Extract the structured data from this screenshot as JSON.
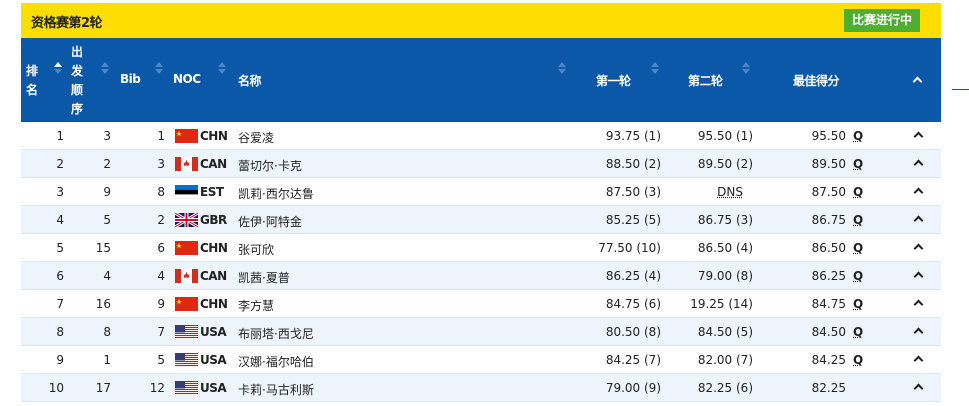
{
  "title": "资格赛第2轮",
  "status": "比赛进行中",
  "columns": {
    "rank": [
      "排",
      "名"
    ],
    "start_order": [
      "出",
      "发",
      "顺",
      "序"
    ],
    "bib": "Bib",
    "noc": "NOC",
    "name": "名称",
    "run1": "第一轮",
    "run2": "第二轮",
    "best": "最佳得分"
  },
  "sort_active": "rank-asc",
  "rows": [
    {
      "rank": "1",
      "order": "3",
      "bib": "1",
      "noc": "CHN",
      "name": "谷爱凌",
      "run1": "93.75 (1)",
      "run2": "95.50 (1)",
      "best": "95.50",
      "q": "Q"
    },
    {
      "rank": "2",
      "order": "2",
      "bib": "3",
      "noc": "CAN",
      "name": "蕾切尔·卡克",
      "run1": "88.50 (2)",
      "run2": "89.50 (2)",
      "best": "89.50",
      "q": "Q"
    },
    {
      "rank": "3",
      "order": "9",
      "bib": "8",
      "noc": "EST",
      "name": "凯莉·西尔达鲁",
      "run1": "87.50 (3)",
      "run2": "DNS",
      "best": "87.50",
      "q": "Q"
    },
    {
      "rank": "4",
      "order": "5",
      "bib": "2",
      "noc": "GBR",
      "name": "佐伊·阿特金",
      "run1": "85.25 (5)",
      "run2": "86.75 (3)",
      "best": "86.75",
      "q": "Q"
    },
    {
      "rank": "5",
      "order": "15",
      "bib": "6",
      "noc": "CHN",
      "name": "张可欣",
      "run1": "77.50 (10)",
      "run2": "86.50 (4)",
      "best": "86.50",
      "q": "Q"
    },
    {
      "rank": "6",
      "order": "4",
      "bib": "4",
      "noc": "CAN",
      "name": "凯茜·夏普",
      "run1": "86.25 (4)",
      "run2": "79.00 (8)",
      "best": "86.25",
      "q": "Q"
    },
    {
      "rank": "7",
      "order": "16",
      "bib": "9",
      "noc": "CHN",
      "name": "李方慧",
      "run1": "84.75 (6)",
      "run2": "19.25 (14)",
      "best": "84.75",
      "q": "Q"
    },
    {
      "rank": "8",
      "order": "8",
      "bib": "7",
      "noc": "USA",
      "name": "布丽塔·西戈尼",
      "run1": "80.50 (8)",
      "run2": "84.50 (5)",
      "best": "84.50",
      "q": "Q"
    },
    {
      "rank": "9",
      "order": "1",
      "bib": "5",
      "noc": "USA",
      "name": "汉娜·福尔哈伯",
      "run1": "84.25 (7)",
      "run2": "82.00 (7)",
      "best": "84.25",
      "q": "Q"
    },
    {
      "rank": "10",
      "order": "17",
      "bib": "12",
      "noc": "USA",
      "name": "卡莉·马古利斯",
      "run1": "79.00 (9)",
      "run2": "82.25 (6)",
      "best": "82.25",
      "q": ""
    }
  ],
  "colors": {
    "topbar": "#fedd00",
    "header": "#0b57a8",
    "status": "#4caf2e",
    "alt_row": "#edf4fb"
  }
}
